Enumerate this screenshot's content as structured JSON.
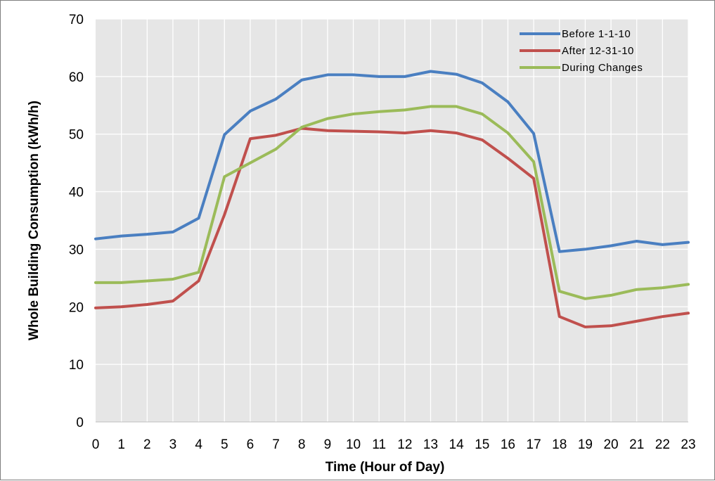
{
  "chart_data": {
    "type": "line",
    "title": "",
    "xlabel": "Time (Hour of Day)",
    "ylabel": "Whole Building Consumption  (kWh/h)",
    "xlim": [
      0,
      23
    ],
    "ylim": [
      0,
      70
    ],
    "y_ticks": [
      0,
      10,
      20,
      30,
      40,
      50,
      60,
      70
    ],
    "x": [
      0,
      1,
      2,
      3,
      4,
      5,
      6,
      7,
      8,
      9,
      10,
      11,
      12,
      13,
      14,
      15,
      16,
      17,
      18,
      19,
      20,
      21,
      22,
      23
    ],
    "grid": true,
    "legend_position": "top-right",
    "series": [
      {
        "name": "Before 1-1-10",
        "color": "#4a7fc1",
        "values": [
          31.8,
          32.3,
          32.6,
          33.0,
          35.4,
          49.9,
          54.0,
          56.1,
          59.4,
          60.3,
          60.3,
          60.0,
          60.0,
          60.9,
          60.4,
          58.9,
          55.6,
          50.1,
          29.6,
          30.0,
          30.6,
          31.4,
          30.8,
          31.2
        ]
      },
      {
        "name": "After 12-31-10",
        "color": "#c0504d",
        "values": [
          19.8,
          20.0,
          20.4,
          21.0,
          24.5,
          36.0,
          49.2,
          49.8,
          51.0,
          50.6,
          50.5,
          50.4,
          50.2,
          50.6,
          50.2,
          49.0,
          45.8,
          42.3,
          18.3,
          16.5,
          16.7,
          17.5,
          18.3,
          18.9
        ]
      },
      {
        "name": "During Changes",
        "color": "#9bbb59",
        "values": [
          24.2,
          24.2,
          24.5,
          24.8,
          26.0,
          42.6,
          45.0,
          47.4,
          51.2,
          52.7,
          53.5,
          53.9,
          54.2,
          54.8,
          54.8,
          53.5,
          50.2,
          45.2,
          22.7,
          21.4,
          22.0,
          23.0,
          23.3,
          23.9
        ]
      }
    ]
  }
}
